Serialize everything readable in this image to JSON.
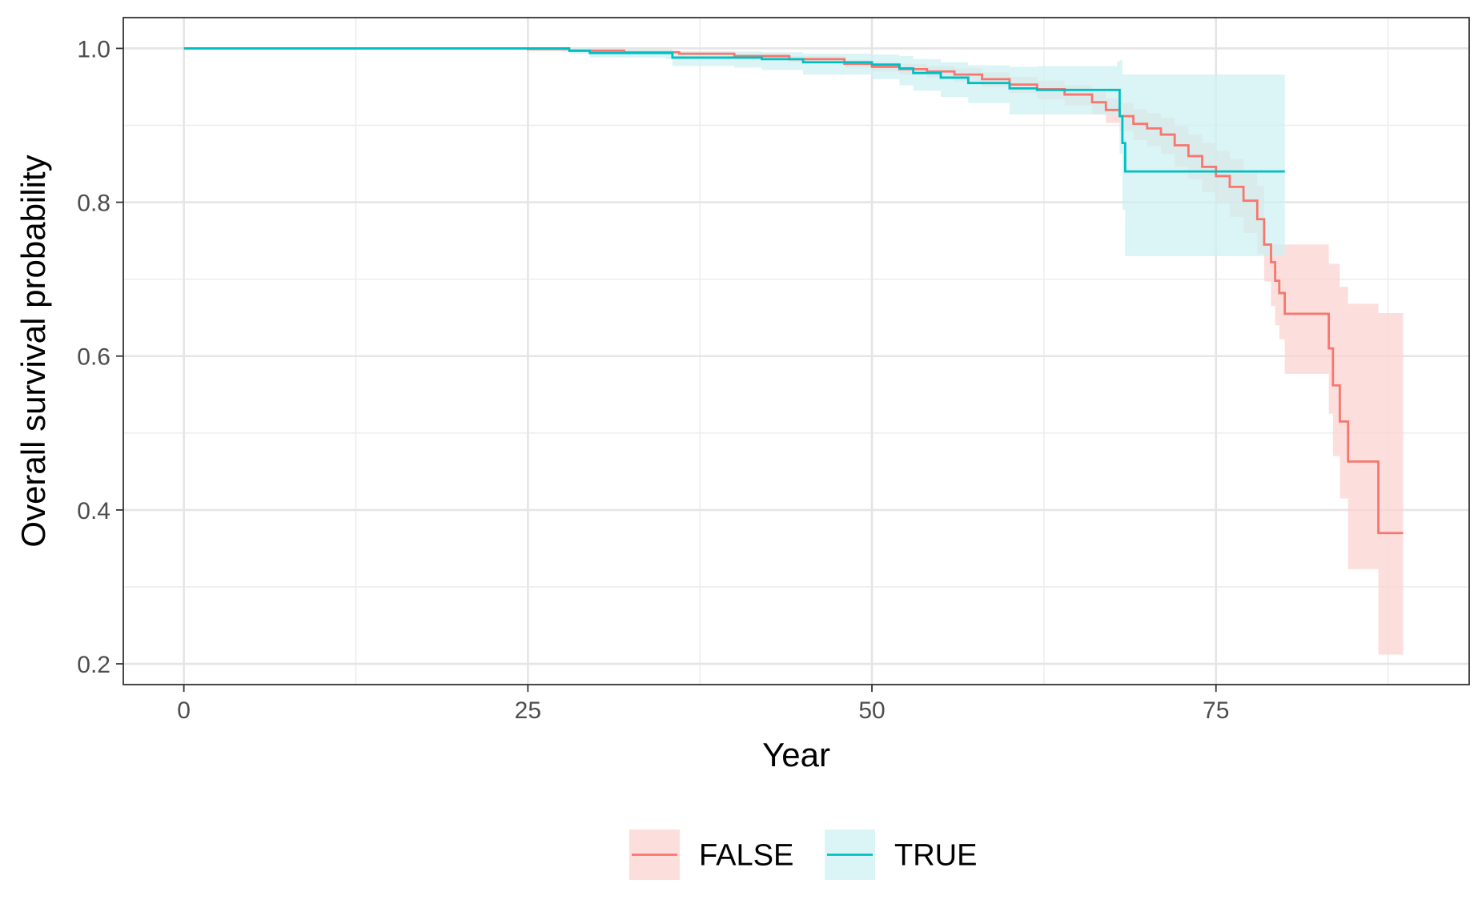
{
  "chart_data": {
    "type": "line",
    "subtype": "kaplan-meier step with confidence bands",
    "xlabel": "Year",
    "ylabel": "Overall survival probability",
    "xlim": [
      -4.4,
      93.4
    ],
    "ylim": [
      0.173,
      1.04
    ],
    "x_ticks": [
      0,
      25,
      50,
      75
    ],
    "y_ticks": [
      0.2,
      0.4,
      0.6,
      0.8,
      1.0
    ],
    "x_tick_labels": [
      "0",
      "25",
      "50",
      "75"
    ],
    "y_tick_labels": [
      "0.2",
      "0.4",
      "0.6",
      "0.8",
      "1.0"
    ],
    "grid": true,
    "legend_position": "bottom",
    "series": [
      {
        "name": "FALSE",
        "color": "#F8766D",
        "fill": "#FBD3D0",
        "points": [
          [
            0,
            1.0
          ],
          [
            20,
            1.0
          ],
          [
            25,
            0.999
          ],
          [
            28,
            0.997
          ],
          [
            32,
            0.995
          ],
          [
            36,
            0.993
          ],
          [
            40,
            0.99
          ],
          [
            44,
            0.986
          ],
          [
            48,
            0.98
          ],
          [
            50,
            0.976
          ],
          [
            52,
            0.973
          ],
          [
            54,
            0.97
          ],
          [
            56,
            0.966
          ],
          [
            58,
            0.96
          ],
          [
            60,
            0.953
          ],
          [
            62,
            0.947
          ],
          [
            64,
            0.94
          ],
          [
            66,
            0.93
          ],
          [
            67,
            0.92
          ],
          [
            68,
            0.912
          ],
          [
            69,
            0.902
          ],
          [
            70,
            0.896
          ],
          [
            71,
            0.888
          ],
          [
            72,
            0.874
          ],
          [
            73,
            0.86
          ],
          [
            74,
            0.846
          ],
          [
            75,
            0.834
          ],
          [
            76,
            0.82
          ],
          [
            77,
            0.802
          ],
          [
            78,
            0.778
          ],
          [
            78.5,
            0.745
          ],
          [
            79,
            0.722
          ],
          [
            79.3,
            0.698
          ],
          [
            79.6,
            0.682
          ],
          [
            80,
            0.655
          ],
          [
            83,
            0.655
          ],
          [
            83.2,
            0.61
          ],
          [
            83.5,
            0.562
          ],
          [
            84,
            0.515
          ],
          [
            84.6,
            0.463
          ],
          [
            86.6,
            0.463
          ],
          [
            86.8,
            0.37
          ],
          [
            88.6,
            0.37
          ]
        ],
        "lower": [
          [
            0,
            1.0
          ],
          [
            20,
            1.0
          ],
          [
            25,
            0.998
          ],
          [
            28,
            0.996
          ],
          [
            32,
            0.993
          ],
          [
            36,
            0.991
          ],
          [
            40,
            0.987
          ],
          [
            44,
            0.982
          ],
          [
            48,
            0.975
          ],
          [
            50,
            0.97
          ],
          [
            52,
            0.966
          ],
          [
            54,
            0.962
          ],
          [
            56,
            0.957
          ],
          [
            58,
            0.95
          ],
          [
            60,
            0.942
          ],
          [
            62,
            0.934
          ],
          [
            64,
            0.926
          ],
          [
            66,
            0.914
          ],
          [
            67,
            0.903
          ],
          [
            68,
            0.893
          ],
          [
            69,
            0.881
          ],
          [
            70,
            0.873
          ],
          [
            71,
            0.863
          ],
          [
            72,
            0.846
          ],
          [
            73,
            0.83
          ],
          [
            74,
            0.813
          ],
          [
            75,
            0.798
          ],
          [
            76,
            0.781
          ],
          [
            77,
            0.76
          ],
          [
            78,
            0.733
          ],
          [
            78.5,
            0.697
          ],
          [
            79,
            0.665
          ],
          [
            79.3,
            0.64
          ],
          [
            79.6,
            0.622
          ],
          [
            80,
            0.577
          ],
          [
            83,
            0.577
          ],
          [
            83.2,
            0.525
          ],
          [
            83.5,
            0.47
          ],
          [
            84,
            0.415
          ],
          [
            84.6,
            0.323
          ],
          [
            86.6,
            0.323
          ],
          [
            86.8,
            0.212
          ],
          [
            88.6,
            0.212
          ]
        ],
        "upper": [
          [
            0,
            1.0
          ],
          [
            20,
            1.0
          ],
          [
            25,
            1.0
          ],
          [
            28,
            0.999
          ],
          [
            32,
            0.997
          ],
          [
            36,
            0.996
          ],
          [
            40,
            0.993
          ],
          [
            44,
            0.99
          ],
          [
            48,
            0.985
          ],
          [
            50,
            0.982
          ],
          [
            52,
            0.98
          ],
          [
            54,
            0.977
          ],
          [
            56,
            0.974
          ],
          [
            58,
            0.969
          ],
          [
            60,
            0.963
          ],
          [
            62,
            0.958
          ],
          [
            64,
            0.952
          ],
          [
            66,
            0.944
          ],
          [
            67,
            0.935
          ],
          [
            68,
            0.929
          ],
          [
            69,
            0.921
          ],
          [
            70,
            0.916
          ],
          [
            71,
            0.91
          ],
          [
            72,
            0.899
          ],
          [
            73,
            0.888
          ],
          [
            74,
            0.877
          ],
          [
            75,
            0.867
          ],
          [
            76,
            0.856
          ],
          [
            77,
            0.841
          ],
          [
            78,
            0.821
          ],
          [
            78.5,
            0.745
          ],
          [
            79,
            0.745
          ],
          [
            80,
            0.745
          ],
          [
            82.5,
            0.745
          ],
          [
            83.2,
            0.72
          ],
          [
            84,
            0.69
          ],
          [
            84.6,
            0.668
          ],
          [
            86.6,
            0.668
          ],
          [
            86.8,
            0.656
          ],
          [
            88.6,
            0.656
          ]
        ]
      },
      {
        "name": "TRUE",
        "color": "#00BFC4",
        "fill": "#CDF0F1",
        "points": [
          [
            0,
            1.0
          ],
          [
            27.5,
            1.0
          ],
          [
            28,
            0.997
          ],
          [
            29.5,
            0.994
          ],
          [
            35,
            0.994
          ],
          [
            35.5,
            0.988
          ],
          [
            40,
            0.988
          ],
          [
            42,
            0.986
          ],
          [
            45,
            0.982
          ],
          [
            50,
            0.979
          ],
          [
            52,
            0.974
          ],
          [
            53,
            0.968
          ],
          [
            55,
            0.962
          ],
          [
            57,
            0.955
          ],
          [
            60,
            0.948
          ],
          [
            62,
            0.946
          ],
          [
            67.8,
            0.946
          ],
          [
            68,
            0.912
          ],
          [
            68.2,
            0.877
          ],
          [
            68.4,
            0.84
          ],
          [
            80,
            0.84
          ]
        ],
        "lower": [
          [
            0,
            1.0
          ],
          [
            27.5,
            0.997
          ],
          [
            28,
            0.993
          ],
          [
            29.5,
            0.988
          ],
          [
            35,
            0.986
          ],
          [
            35.5,
            0.977
          ],
          [
            40,
            0.975
          ],
          [
            42,
            0.972
          ],
          [
            45,
            0.966
          ],
          [
            50,
            0.96
          ],
          [
            52,
            0.952
          ],
          [
            53,
            0.945
          ],
          [
            55,
            0.937
          ],
          [
            57,
            0.929
          ],
          [
            60,
            0.914
          ],
          [
            62,
            0.914
          ],
          [
            67.8,
            0.914
          ],
          [
            68,
            0.863
          ],
          [
            68.2,
            0.79
          ],
          [
            68.4,
            0.73
          ],
          [
            80,
            0.73
          ]
        ],
        "upper": [
          [
            0,
            1.0
          ],
          [
            27.5,
            1.0
          ],
          [
            28,
            1.0
          ],
          [
            29.5,
            0.999
          ],
          [
            35,
            0.999
          ],
          [
            35.5,
            0.996
          ],
          [
            40,
            0.996
          ],
          [
            42,
            0.995
          ],
          [
            45,
            0.993
          ],
          [
            50,
            0.992
          ],
          [
            52,
            0.99
          ],
          [
            53,
            0.986
          ],
          [
            55,
            0.982
          ],
          [
            57,
            0.978
          ],
          [
            60,
            0.976
          ],
          [
            62,
            0.977
          ],
          [
            67.8,
            0.983
          ],
          [
            68,
            0.985
          ],
          [
            68.2,
            0.966
          ],
          [
            68.4,
            0.966
          ],
          [
            80,
            0.966
          ]
        ]
      }
    ]
  }
}
